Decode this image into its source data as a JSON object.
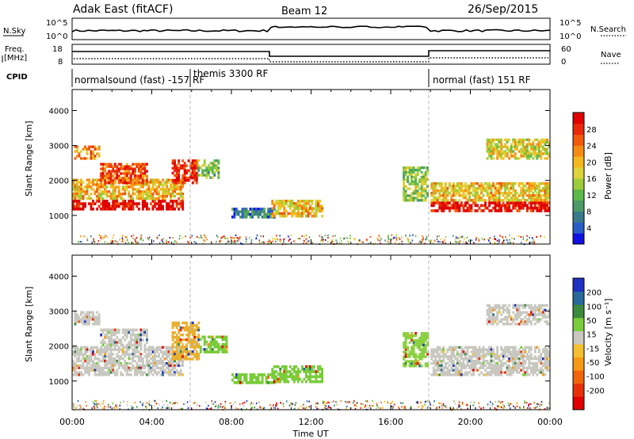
{
  "header": {
    "station": "Adak East (fitACF)",
    "beam": "Beam 12",
    "date": "26/Sep/2015"
  },
  "nsky_panel": {
    "left_label": "N.Sky",
    "right_label": "N.Search",
    "left_ticks": [
      "10^5",
      "10^0"
    ],
    "right_ticks": [
      "10^5",
      "10^0"
    ]
  },
  "freq_panel": {
    "left_label_line1": "Freq.",
    "left_label_line2": "[MHz]",
    "right_label": "Nave",
    "left_ticks": [
      "18",
      "8"
    ],
    "right_ticks": [
      "60",
      "0"
    ]
  },
  "cpid_panel": {
    "label": "CPID",
    "modes": [
      {
        "text": "normalsound (fast) -157 RF",
        "start_hour": 0
      },
      {
        "text": "themis 3300 RF",
        "start_hour": 6
      },
      {
        "text": "normal (fast) 151 RF",
        "start_hour": 18
      }
    ]
  },
  "time_axis": {
    "label": "Time UT",
    "ticks": [
      "00:00",
      "04:00",
      "08:00",
      "12:00",
      "16:00",
      "20:00",
      "00:00"
    ]
  },
  "chart_data": [
    {
      "type": "heatmap",
      "title": "",
      "parameter": "Power",
      "xlabel": "Time UT",
      "ylabel": "Slant Range [km]",
      "xlim_hours": [
        0,
        24
      ],
      "ylim_km": [
        180,
        4600
      ],
      "yticks": [
        1000,
        2000,
        3000,
        4000
      ],
      "colorbar": {
        "label": "Power [dB]",
        "ticks": [
          4,
          8,
          12,
          16,
          20,
          24,
          28
        ],
        "colors": [
          "#1010e0",
          "#2a5cc8",
          "#3a7a8a",
          "#4c9a6a",
          "#5cb84a",
          "#9ccc3a",
          "#dcd43a",
          "#f4b81e",
          "#f48c14",
          "#f05a0c",
          "#e82a0a",
          "#e00000"
        ]
      },
      "echo_regions": [
        {
          "t0": 0.0,
          "t1": 5.6,
          "r0": 1150,
          "r1": 1450,
          "level": 0.96
        },
        {
          "t0": 0.0,
          "t1": 5.6,
          "r0": 1450,
          "r1": 2050,
          "level": 0.62
        },
        {
          "t0": 0.1,
          "t1": 1.4,
          "r0": 2600,
          "r1": 3000,
          "level": 0.72
        },
        {
          "t0": 1.4,
          "t1": 3.8,
          "r0": 1900,
          "r1": 2500,
          "level": 0.8
        },
        {
          "t0": 5.0,
          "t1": 6.3,
          "r0": 1900,
          "r1": 2600,
          "level": 0.9
        },
        {
          "t0": 6.3,
          "t1": 7.4,
          "r0": 2050,
          "r1": 2600,
          "level": 0.4
        },
        {
          "t0": 8.0,
          "t1": 10.2,
          "r0": 920,
          "r1": 1220,
          "level": 0.2
        },
        {
          "t0": 10.0,
          "t1": 12.6,
          "r0": 950,
          "r1": 1450,
          "level": 0.62
        },
        {
          "t0": 16.6,
          "t1": 17.9,
          "r0": 1400,
          "r1": 2400,
          "level": 0.45
        },
        {
          "t0": 18.0,
          "t1": 24.0,
          "r0": 1100,
          "r1": 1400,
          "level": 0.94
        },
        {
          "t0": 18.0,
          "t1": 24.0,
          "r0": 1400,
          "r1": 1950,
          "level": 0.6
        },
        {
          "t0": 20.8,
          "t1": 24.0,
          "r0": 2600,
          "r1": 3200,
          "level": 0.55
        }
      ]
    },
    {
      "type": "heatmap",
      "title": "",
      "parameter": "Velocity",
      "xlabel": "Time UT",
      "ylabel": "Slant Range [km]",
      "xlim_hours": [
        0,
        24
      ],
      "ylim_km": [
        180,
        4600
      ],
      "yticks": [
        1000,
        2000,
        3000,
        4000
      ],
      "colorbar": {
        "label": "Velocity [m s⁻¹]",
        "ticks": [
          200,
          100,
          50,
          15,
          -15,
          -50,
          -100,
          -200
        ],
        "colors": [
          "#2030c0",
          "#2a6a9a",
          "#3c8a3c",
          "#7acc3a",
          "#c8c8c0",
          "#f4c032",
          "#f49a14",
          "#f0640c",
          "#e83008",
          "#e00000"
        ]
      },
      "echo_regions": [
        {
          "t0": 0.0,
          "t1": 5.6,
          "r0": 1150,
          "r1": 2000,
          "color": "#c8c8c0"
        },
        {
          "t0": 0.1,
          "t1": 1.4,
          "r0": 2600,
          "r1": 3000,
          "color": "#c8c8c0"
        },
        {
          "t0": 1.4,
          "t1": 3.8,
          "r0": 2000,
          "r1": 2500,
          "color": "#c8c8c0"
        },
        {
          "t0": 5.0,
          "t1": 6.4,
          "r0": 1600,
          "r1": 2700,
          "color": "#e8b030"
        },
        {
          "t0": 6.4,
          "t1": 7.8,
          "r0": 1800,
          "r1": 2300,
          "color": "#7acc3a"
        },
        {
          "t0": 8.0,
          "t1": 10.2,
          "r0": 920,
          "r1": 1220,
          "color": "#7acc3a"
        },
        {
          "t0": 10.0,
          "t1": 12.6,
          "r0": 950,
          "r1": 1450,
          "color": "#7acc3a"
        },
        {
          "t0": 16.6,
          "t1": 17.9,
          "r0": 1400,
          "r1": 2400,
          "color": "#8ad040"
        },
        {
          "t0": 18.0,
          "t1": 24.0,
          "r0": 1150,
          "r1": 2000,
          "color": "#c8c8c0"
        },
        {
          "t0": 20.8,
          "t1": 24.0,
          "r0": 2600,
          "r1": 3200,
          "color": "#c8c8c0"
        }
      ]
    }
  ]
}
